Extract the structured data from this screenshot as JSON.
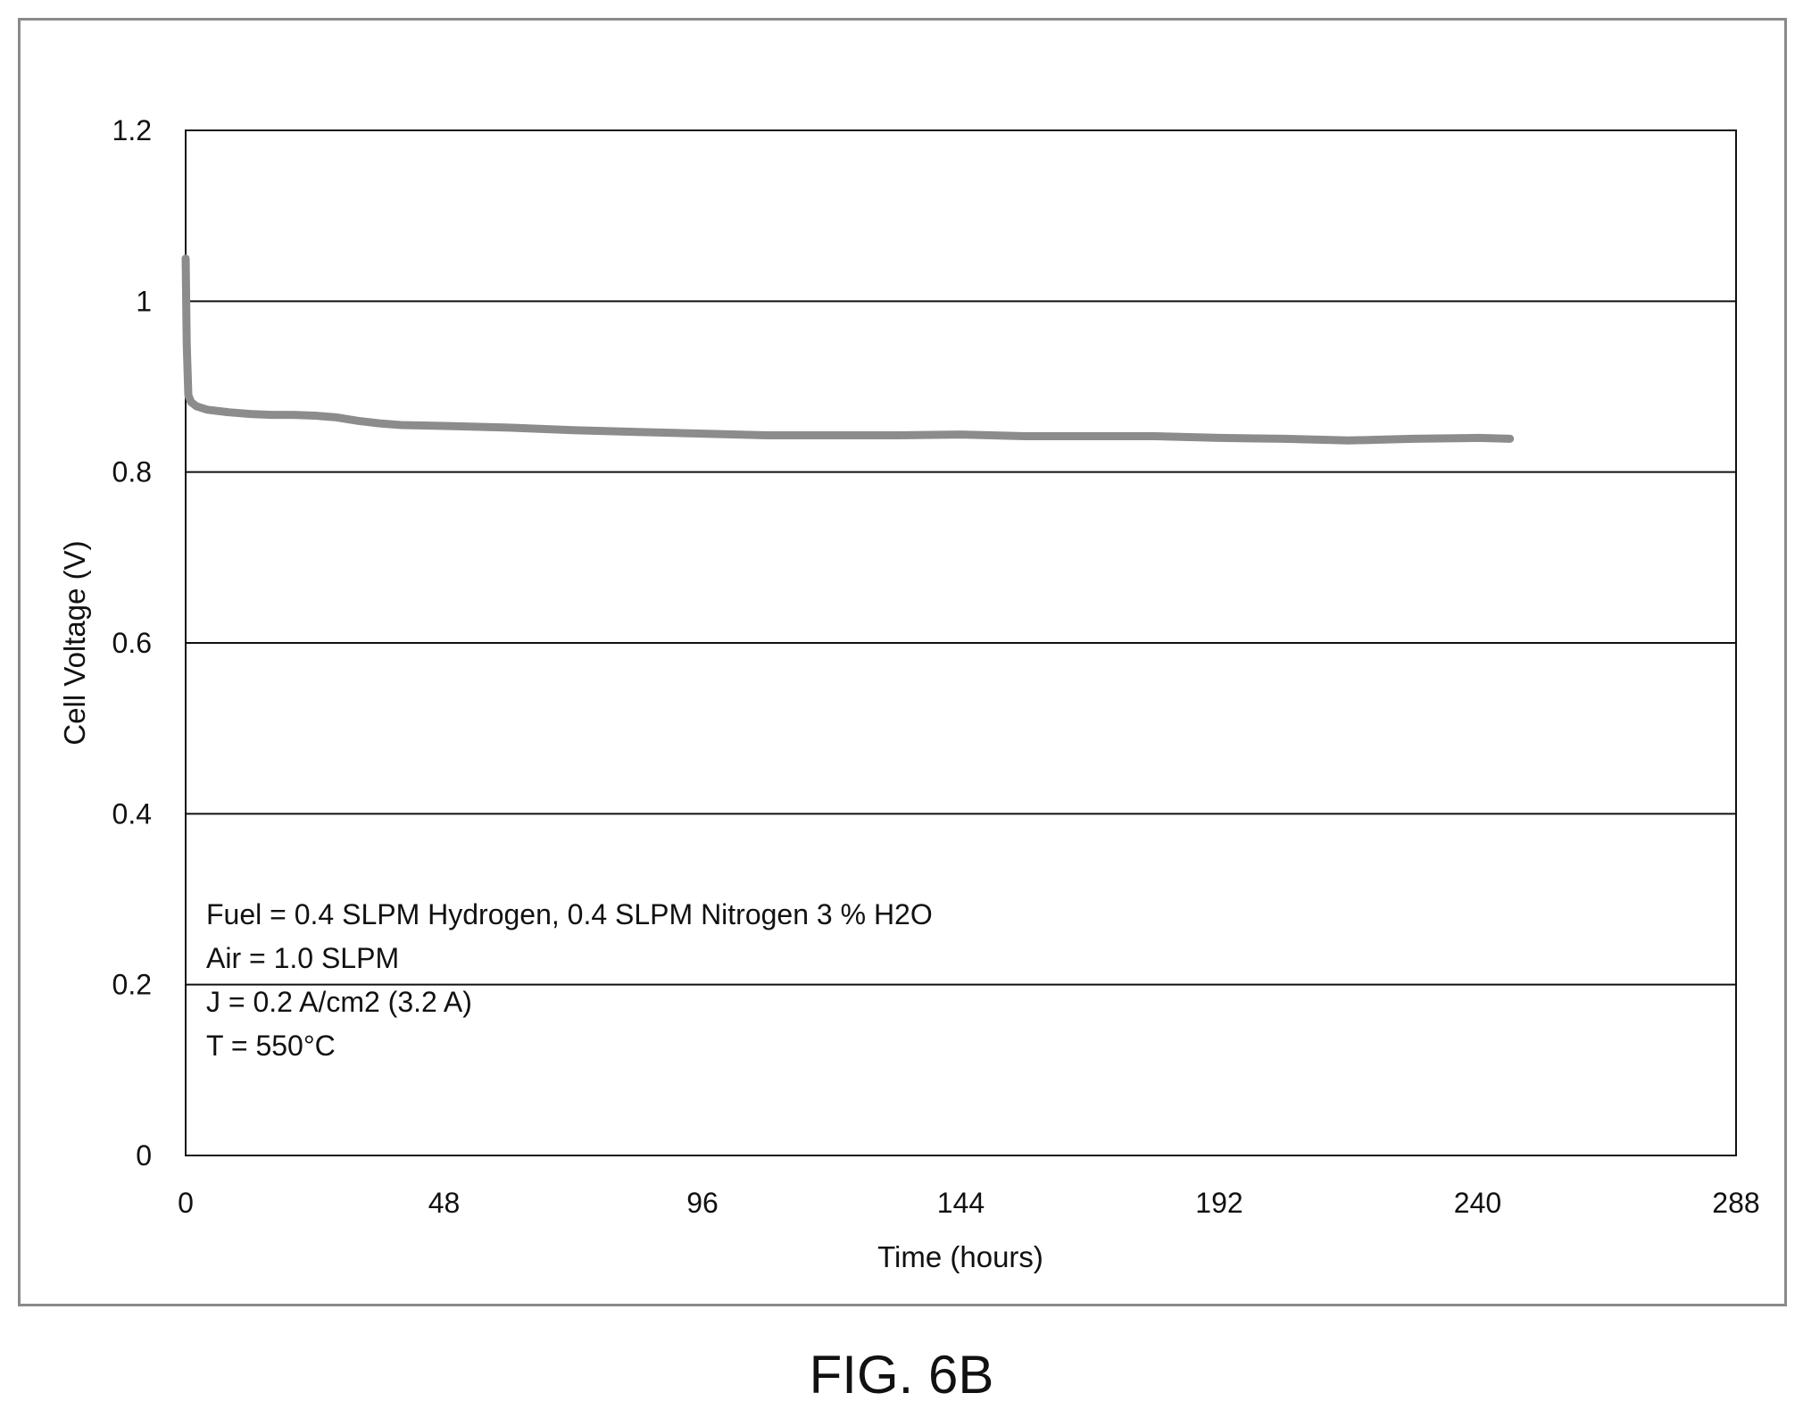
{
  "figure_label": "FIG. 6B",
  "chart_data": {
    "type": "line",
    "xlabel": "Time (hours)",
    "ylabel": "Cell Voltage (V)",
    "xlim": [
      0,
      288
    ],
    "ylim": [
      0,
      1.2
    ],
    "x_ticks": [
      0,
      48,
      96,
      144,
      192,
      240,
      288
    ],
    "x_tick_labels": [
      "0",
      "48",
      "96",
      "144",
      "192",
      "240",
      "288"
    ],
    "y_ticks": [
      0,
      0.2,
      0.4,
      0.6,
      0.8,
      1.0,
      1.2
    ],
    "y_tick_labels": [
      "0",
      "0.2",
      "0.4",
      "0.6",
      "0.8",
      "1",
      "1.2"
    ],
    "grid": "horizontal",
    "line_color": "#8c8c8c",
    "annotations": [
      "Fuel = 0.4 SLPM Hydrogen, 0.4 SLPM Nitrogen 3 % H2O",
      "Air = 1.0 SLPM",
      "J = 0.2 A/cm2 (3.2 A)",
      "T = 550°C"
    ],
    "series": [
      {
        "x": [
          0,
          0.2,
          0.5,
          1,
          2,
          4,
          8,
          12,
          16,
          20,
          24,
          28,
          32,
          36,
          40,
          48,
          60,
          72,
          84,
          96,
          108,
          120,
          132,
          144,
          156,
          168,
          180,
          192,
          204,
          216,
          228,
          240,
          246
        ],
        "y": [
          1.05,
          0.95,
          0.89,
          0.882,
          0.877,
          0.873,
          0.87,
          0.868,
          0.867,
          0.867,
          0.866,
          0.864,
          0.86,
          0.857,
          0.855,
          0.854,
          0.852,
          0.849,
          0.847,
          0.845,
          0.843,
          0.843,
          0.843,
          0.844,
          0.842,
          0.842,
          0.842,
          0.84,
          0.839,
          0.837,
          0.839,
          0.84,
          0.839
        ]
      }
    ]
  }
}
